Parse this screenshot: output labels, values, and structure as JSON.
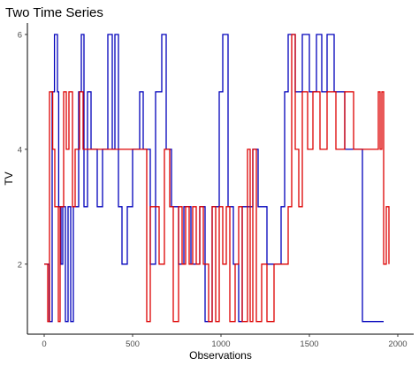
{
  "chart_data": {
    "type": "line",
    "title": "Two Time Series",
    "xlabel": "Observations",
    "ylabel": "TV",
    "xlim": [
      -95,
      2090
    ],
    "ylim": [
      0.78,
      6.2
    ],
    "x_ticks": [
      0,
      500,
      1000,
      1500,
      2000
    ],
    "y_ticks": [
      2,
      4,
      6
    ],
    "grid": false,
    "legend": "none",
    "series": [
      {
        "color": "#0000bb",
        "step_points": [
          [
            0,
            2
          ],
          [
            28,
            1
          ],
          [
            45,
            5
          ],
          [
            58,
            6
          ],
          [
            75,
            5
          ],
          [
            82,
            3
          ],
          [
            95,
            2
          ],
          [
            105,
            3
          ],
          [
            120,
            1
          ],
          [
            135,
            3
          ],
          [
            150,
            1
          ],
          [
            165,
            3
          ],
          [
            195,
            5
          ],
          [
            210,
            6
          ],
          [
            225,
            3
          ],
          [
            245,
            5
          ],
          [
            265,
            4
          ],
          [
            300,
            3
          ],
          [
            330,
            4
          ],
          [
            360,
            6
          ],
          [
            385,
            4
          ],
          [
            400,
            6
          ],
          [
            420,
            3
          ],
          [
            440,
            2
          ],
          [
            470,
            3
          ],
          [
            500,
            4
          ],
          [
            540,
            5
          ],
          [
            560,
            4
          ],
          [
            600,
            2
          ],
          [
            630,
            5
          ],
          [
            665,
            6
          ],
          [
            690,
            4
          ],
          [
            720,
            3
          ],
          [
            760,
            2
          ],
          [
            790,
            3
          ],
          [
            830,
            2
          ],
          [
            880,
            3
          ],
          [
            910,
            1
          ],
          [
            950,
            3
          ],
          [
            990,
            5
          ],
          [
            1010,
            6
          ],
          [
            1040,
            3
          ],
          [
            1070,
            2
          ],
          [
            1100,
            1
          ],
          [
            1120,
            3
          ],
          [
            1180,
            4
          ],
          [
            1210,
            3
          ],
          [
            1260,
            2
          ],
          [
            1300,
            2
          ],
          [
            1340,
            3
          ],
          [
            1360,
            5
          ],
          [
            1380,
            6
          ],
          [
            1420,
            5
          ],
          [
            1460,
            6
          ],
          [
            1500,
            5
          ],
          [
            1540,
            6
          ],
          [
            1570,
            5
          ],
          [
            1600,
            6
          ],
          [
            1640,
            5
          ],
          [
            1700,
            4
          ],
          [
            1750,
            4
          ],
          [
            1800,
            1
          ],
          [
            1840,
            1
          ],
          [
            1870,
            1
          ],
          [
            1920,
            1
          ]
        ]
      },
      {
        "color": "#dd0000",
        "step_points": [
          [
            0,
            2
          ],
          [
            20,
            1
          ],
          [
            30,
            5
          ],
          [
            48,
            4
          ],
          [
            60,
            3
          ],
          [
            80,
            1
          ],
          [
            90,
            3
          ],
          [
            110,
            5
          ],
          [
            125,
            4
          ],
          [
            140,
            5
          ],
          [
            160,
            3
          ],
          [
            175,
            4
          ],
          [
            200,
            5
          ],
          [
            220,
            4
          ],
          [
            260,
            4
          ],
          [
            300,
            4
          ],
          [
            340,
            4
          ],
          [
            380,
            4
          ],
          [
            420,
            4
          ],
          [
            470,
            4
          ],
          [
            520,
            4
          ],
          [
            560,
            4
          ],
          [
            580,
            1
          ],
          [
            600,
            3
          ],
          [
            620,
            3
          ],
          [
            650,
            2
          ],
          [
            680,
            4
          ],
          [
            710,
            3
          ],
          [
            730,
            1
          ],
          [
            760,
            3
          ],
          [
            780,
            2
          ],
          [
            800,
            3
          ],
          [
            820,
            2
          ],
          [
            840,
            3
          ],
          [
            860,
            2
          ],
          [
            880,
            3
          ],
          [
            900,
            2
          ],
          [
            930,
            1
          ],
          [
            950,
            3
          ],
          [
            970,
            1
          ],
          [
            990,
            3
          ],
          [
            1010,
            2
          ],
          [
            1030,
            3
          ],
          [
            1050,
            1
          ],
          [
            1080,
            2
          ],
          [
            1100,
            3
          ],
          [
            1120,
            1
          ],
          [
            1150,
            4
          ],
          [
            1165,
            1
          ],
          [
            1180,
            4
          ],
          [
            1200,
            1
          ],
          [
            1230,
            2
          ],
          [
            1260,
            1
          ],
          [
            1300,
            2
          ],
          [
            1330,
            2
          ],
          [
            1380,
            3
          ],
          [
            1400,
            6
          ],
          [
            1420,
            4
          ],
          [
            1440,
            3
          ],
          [
            1460,
            5
          ],
          [
            1490,
            4
          ],
          [
            1520,
            5
          ],
          [
            1560,
            4
          ],
          [
            1600,
            5
          ],
          [
            1650,
            4
          ],
          [
            1700,
            5
          ],
          [
            1750,
            4
          ],
          [
            1800,
            4
          ],
          [
            1850,
            4
          ],
          [
            1880,
            4
          ],
          [
            1890,
            5
          ],
          [
            1900,
            4
          ],
          [
            1910,
            5
          ],
          [
            1920,
            2
          ],
          [
            1935,
            3
          ],
          [
            1950,
            2
          ]
        ]
      }
    ]
  }
}
